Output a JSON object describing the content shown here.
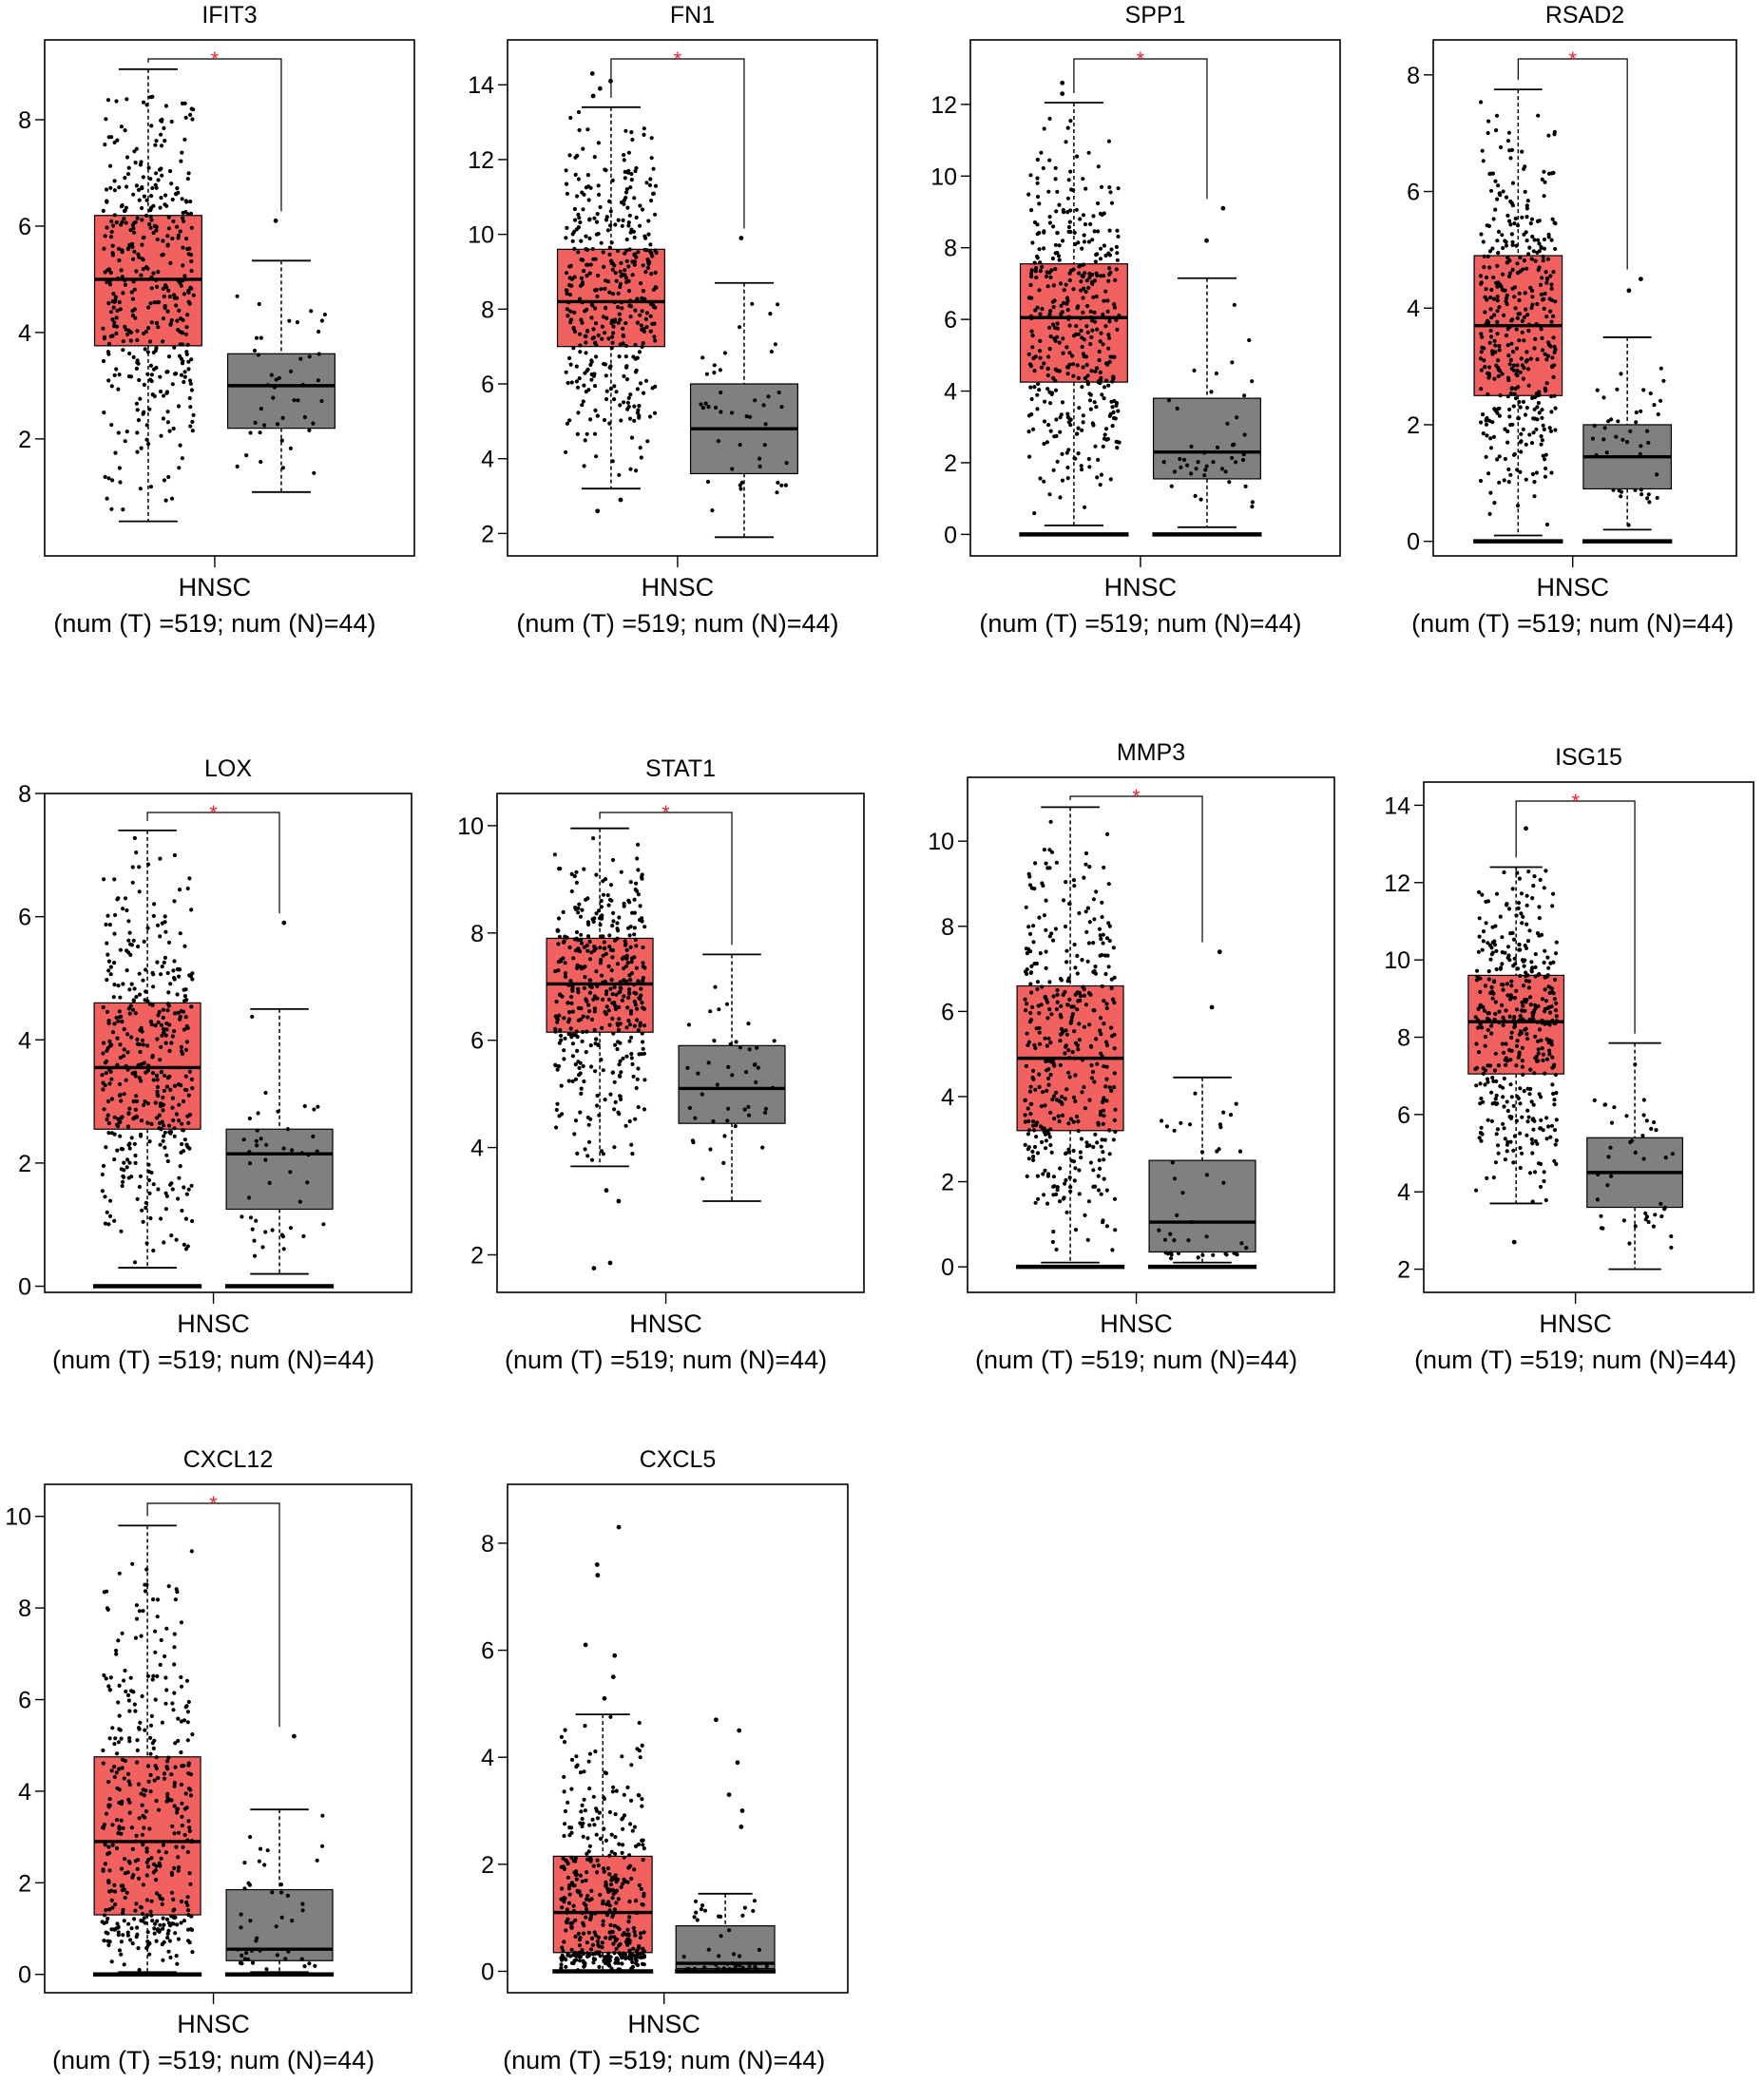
{
  "colors": {
    "tumor": "#f0615f",
    "normal": "#808080",
    "significance": "#e8232a",
    "points": "#000000"
  },
  "chart_data": [
    {
      "type": "box",
      "title": "IFIT3",
      "category": "HNSC",
      "n_label": "(num (T) =519; num (N)=44)",
      "significant": true,
      "significance_label": "*",
      "y_ticks": [
        2,
        4,
        6,
        8
      ],
      "ylim": [
        -0.2,
        9.5
      ],
      "zero_bar": false,
      "groups": [
        {
          "name": "T",
          "count": 519,
          "min": 0.45,
          "q1": 3.75,
          "median": 5.0,
          "q3": 6.2,
          "max": 8.95,
          "outliers": []
        },
        {
          "name": "N",
          "count": 44,
          "min": 1.0,
          "q1": 2.2,
          "median": 3.0,
          "q3": 3.6,
          "max": 5.35,
          "outliers": [
            6.1
          ]
        }
      ]
    },
    {
      "type": "box",
      "title": "FN1",
      "category": "HNSC",
      "n_label": "(num (T) =519; num (N)=44)",
      "significant": true,
      "significance_label": "*",
      "y_ticks": [
        2,
        4,
        6,
        8,
        10,
        12,
        14
      ],
      "ylim": [
        1.4,
        15.2
      ],
      "zero_bar": false,
      "groups": [
        {
          "name": "T",
          "count": 519,
          "min": 3.2,
          "q1": 7.0,
          "median": 8.2,
          "q3": 9.6,
          "max": 13.4,
          "outliers": [
            2.6,
            2.9,
            13.7,
            13.9,
            14.1,
            14.3
          ]
        },
        {
          "name": "N",
          "count": 44,
          "min": 1.9,
          "q1": 3.6,
          "median": 4.8,
          "q3": 6.0,
          "max": 8.7,
          "outliers": [
            9.9
          ]
        }
      ]
    },
    {
      "type": "box",
      "title": "SPP1",
      "category": "HNSC",
      "n_label": "(num (T) =519; num (N)=44)",
      "significant": true,
      "significance_label": "*",
      "y_ticks": [
        0,
        2,
        4,
        6,
        8,
        10,
        12
      ],
      "ylim": [
        -0.6,
        13.8
      ],
      "zero_bar": true,
      "groups": [
        {
          "name": "T",
          "count": 519,
          "min": 0.25,
          "q1": 4.25,
          "median": 6.05,
          "q3": 7.55,
          "max": 12.05,
          "outliers": [
            12.3,
            12.6
          ]
        },
        {
          "name": "N",
          "count": 44,
          "min": 0.2,
          "q1": 1.55,
          "median": 2.3,
          "q3": 3.8,
          "max": 7.15,
          "outliers": [
            8.2,
            9.1
          ]
        }
      ]
    },
    {
      "type": "box",
      "title": "RSAD2",
      "category": "HNSC",
      "n_label": "(num (T) =519; num (N)=44)",
      "significant": true,
      "significance_label": "*",
      "y_ticks": [
        0,
        2,
        4,
        6,
        8
      ],
      "ylim": [
        -0.25,
        8.6
      ],
      "zero_bar": true,
      "groups": [
        {
          "name": "T",
          "count": 519,
          "min": 0.1,
          "q1": 2.5,
          "median": 3.7,
          "q3": 4.9,
          "max": 7.75,
          "outliers": []
        },
        {
          "name": "N",
          "count": 44,
          "min": 0.2,
          "q1": 0.9,
          "median": 1.45,
          "q3": 2.0,
          "max": 3.5,
          "outliers": [
            4.3,
            4.5
          ]
        }
      ]
    },
    {
      "type": "box",
      "title": "LOX",
      "category": "HNSC",
      "n_label": "(num (T) =519; num (N)=44)",
      "significant": true,
      "significance_label": "*",
      "y_ticks": [
        0,
        2,
        4,
        6,
        8
      ],
      "ylim": [
        -0.1,
        8.0
      ],
      "zero_bar": true,
      "groups": [
        {
          "name": "T",
          "count": 519,
          "min": 0.3,
          "q1": 2.55,
          "median": 3.55,
          "q3": 4.6,
          "max": 7.4,
          "outliers": []
        },
        {
          "name": "N",
          "count": 44,
          "min": 0.2,
          "q1": 1.25,
          "median": 2.15,
          "q3": 2.55,
          "max": 4.5,
          "outliers": [
            5.9
          ]
        }
      ]
    },
    {
      "type": "box",
      "title": "STAT1",
      "category": "HNSC",
      "n_label": "(num (T) =519; num (N)=44)",
      "significant": true,
      "significance_label": "*",
      "y_ticks": [
        2,
        4,
        6,
        8,
        10
      ],
      "ylim": [
        1.3,
        10.6
      ],
      "zero_bar": false,
      "groups": [
        {
          "name": "T",
          "count": 519,
          "min": 3.65,
          "q1": 6.15,
          "median": 7.05,
          "q3": 7.9,
          "max": 9.95,
          "outliers": [
            1.75,
            1.85,
            3.0,
            3.2
          ]
        },
        {
          "name": "N",
          "count": 44,
          "min": 3.0,
          "q1": 4.45,
          "median": 5.1,
          "q3": 5.9,
          "max": 7.6,
          "outliers": []
        }
      ]
    },
    {
      "type": "box",
      "title": "MMP3",
      "category": "HNSC",
      "n_label": "(num (T) =519; num (N)=44)",
      "significant": true,
      "significance_label": "*",
      "y_ticks": [
        0,
        2,
        4,
        6,
        8,
        10
      ],
      "ylim": [
        -0.6,
        11.5
      ],
      "zero_bar": true,
      "groups": [
        {
          "name": "T",
          "count": 519,
          "min": 0.1,
          "q1": 3.2,
          "median": 4.9,
          "q3": 6.6,
          "max": 10.8,
          "outliers": []
        },
        {
          "name": "N",
          "count": 44,
          "min": 0.1,
          "q1": 0.35,
          "median": 1.05,
          "q3": 2.5,
          "max": 4.45,
          "outliers": [
            6.1,
            7.4
          ]
        }
      ]
    },
    {
      "type": "box",
      "title": "ISG15",
      "category": "HNSC",
      "n_label": "(num (T) =519; num (N)=44)",
      "significant": true,
      "significance_label": "*",
      "y_ticks": [
        2,
        4,
        6,
        8,
        10,
        12,
        14
      ],
      "ylim": [
        1.4,
        14.6
      ],
      "zero_bar": false,
      "groups": [
        {
          "name": "T",
          "count": 519,
          "min": 3.7,
          "q1": 7.05,
          "median": 8.4,
          "q3": 9.6,
          "max": 12.4,
          "outliers": [
            2.7,
            13.4
          ]
        },
        {
          "name": "N",
          "count": 44,
          "min": 2.0,
          "q1": 3.6,
          "median": 4.5,
          "q3": 5.4,
          "max": 7.85,
          "outliers": []
        }
      ]
    },
    {
      "type": "box",
      "title": "CXCL12",
      "category": "HNSC",
      "n_label": "(num (T) =519; num (N)=44)",
      "significant": true,
      "significance_label": "*",
      "y_ticks": [
        0,
        2,
        4,
        6,
        8,
        10
      ],
      "ylim": [
        -0.4,
        10.7
      ],
      "zero_bar": true,
      "groups": [
        {
          "name": "T",
          "count": 519,
          "min": 0.05,
          "q1": 1.3,
          "median": 2.9,
          "q3": 4.75,
          "max": 9.8,
          "outliers": []
        },
        {
          "name": "N",
          "count": 44,
          "min": 0.05,
          "q1": 0.3,
          "median": 0.55,
          "q3": 1.85,
          "max": 3.6,
          "outliers": [
            5.2
          ]
        }
      ]
    },
    {
      "type": "box",
      "title": "CXCL5",
      "category": "HNSC",
      "n_label": "(num (T) =519; num (N)=44)",
      "significant": false,
      "significance_label": "",
      "y_ticks": [
        0,
        2,
        4,
        6,
        8
      ],
      "ylim": [
        -0.4,
        9.1
      ],
      "zero_bar": true,
      "groups": [
        {
          "name": "T",
          "count": 519,
          "min": 0.0,
          "q1": 0.35,
          "median": 1.1,
          "q3": 2.15,
          "max": 4.8,
          "outliers": [
            5.1,
            5.5,
            5.9,
            6.1,
            7.4,
            7.6,
            8.3
          ]
        },
        {
          "name": "N",
          "count": 44,
          "min": 0.0,
          "q1": 0.05,
          "median": 0.15,
          "q3": 0.85,
          "max": 1.45,
          "outliers": [
            2.7,
            3.0,
            3.3,
            3.9,
            4.5,
            4.7
          ]
        }
      ]
    }
  ]
}
